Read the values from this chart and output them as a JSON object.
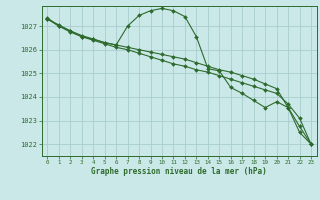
{
  "title": "Graphe pression niveau de la mer (hPa)",
  "background_color": "#cbe8e8",
  "grid_color": "#a8cccc",
  "line_color": "#2d6b2d",
  "x_min": -0.5,
  "x_max": 23.5,
  "y_min": 1021.5,
  "y_max": 1027.85,
  "y_ticks": [
    1022,
    1023,
    1024,
    1025,
    1026,
    1027
  ],
  "x_ticks": [
    0,
    1,
    2,
    3,
    4,
    5,
    6,
    7,
    8,
    9,
    10,
    11,
    12,
    13,
    14,
    15,
    16,
    17,
    18,
    19,
    20,
    21,
    22,
    23
  ],
  "series1_x": [
    0,
    1,
    2,
    3,
    4,
    5,
    6,
    7,
    8,
    9,
    10,
    11,
    12,
    13,
    14,
    15,
    16,
    17,
    18,
    19,
    20,
    21,
    22,
    23
  ],
  "series1_y": [
    1027.3,
    1027.0,
    1026.75,
    1026.55,
    1026.4,
    1026.25,
    1026.1,
    1026.0,
    1025.85,
    1025.7,
    1025.55,
    1025.4,
    1025.3,
    1025.15,
    1025.05,
    1024.9,
    1024.75,
    1024.6,
    1024.45,
    1024.3,
    1024.15,
    1023.7,
    1023.1,
    1022.0
  ],
  "series2_x": [
    0,
    1,
    2,
    3,
    4,
    5,
    6,
    7,
    8,
    9,
    10,
    11,
    12,
    13,
    14,
    15,
    16,
    17,
    18,
    19,
    20,
    21,
    22,
    23
  ],
  "series2_y": [
    1027.3,
    1027.05,
    1026.8,
    1026.6,
    1026.45,
    1026.3,
    1026.2,
    1026.1,
    1026.0,
    1025.9,
    1025.8,
    1025.7,
    1025.6,
    1025.45,
    1025.3,
    1025.15,
    1025.05,
    1024.9,
    1024.75,
    1024.55,
    1024.35,
    1023.55,
    1022.75,
    1022.0
  ],
  "series3_x": [
    0,
    1,
    2,
    3,
    4,
    5,
    6,
    7,
    8,
    9,
    10,
    11,
    12,
    13,
    14,
    15,
    16,
    17,
    18,
    19,
    20,
    21,
    22,
    23
  ],
  "series3_y": [
    1027.35,
    1027.0,
    1026.8,
    1026.55,
    1026.45,
    1026.3,
    1026.2,
    1027.0,
    1027.45,
    1027.65,
    1027.75,
    1027.65,
    1027.4,
    1026.55,
    1025.2,
    1025.1,
    1024.4,
    1024.15,
    1023.85,
    1023.55,
    1023.8,
    1023.55,
    1022.5,
    1022.0
  ]
}
